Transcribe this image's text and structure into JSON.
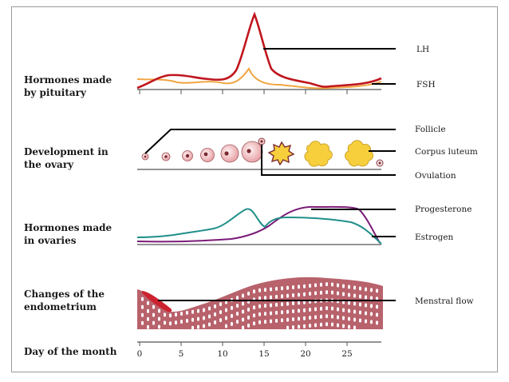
{
  "left_labels": {
    "pituitary": [
      "Hormones made",
      "by pituitary"
    ],
    "ovary": [
      "Development in",
      "the ovary"
    ],
    "ovaries": [
      "Hormones made",
      "in ovaries"
    ],
    "endometrium": [
      "Changes of the",
      "endometrium"
    ],
    "day_axis": "Day of the month"
  },
  "right_labels": {
    "lh": "LH",
    "fsh": "FSH",
    "follicle": "Follicle",
    "corpus_luteum": "Corpus luteum",
    "ovulation": "Ovulation",
    "progesterone": "Progesterone",
    "estrogen": "Estrogen",
    "menstral_flow": "Menstral flow"
  },
  "day_ticks": [
    "0",
    "5",
    "10",
    "15",
    "20",
    "25"
  ],
  "colors": {
    "lh": "#c0161e",
    "fsh": "#f0a642",
    "progesterone": "#7a1a78",
    "estrogen": "#1f8f8a",
    "endometrium": "#b8626c",
    "menstral_flow": "#cc2230",
    "follicle_fill": "#f6d0d0",
    "corpus_luteum": "#f7cf3c"
  }
}
